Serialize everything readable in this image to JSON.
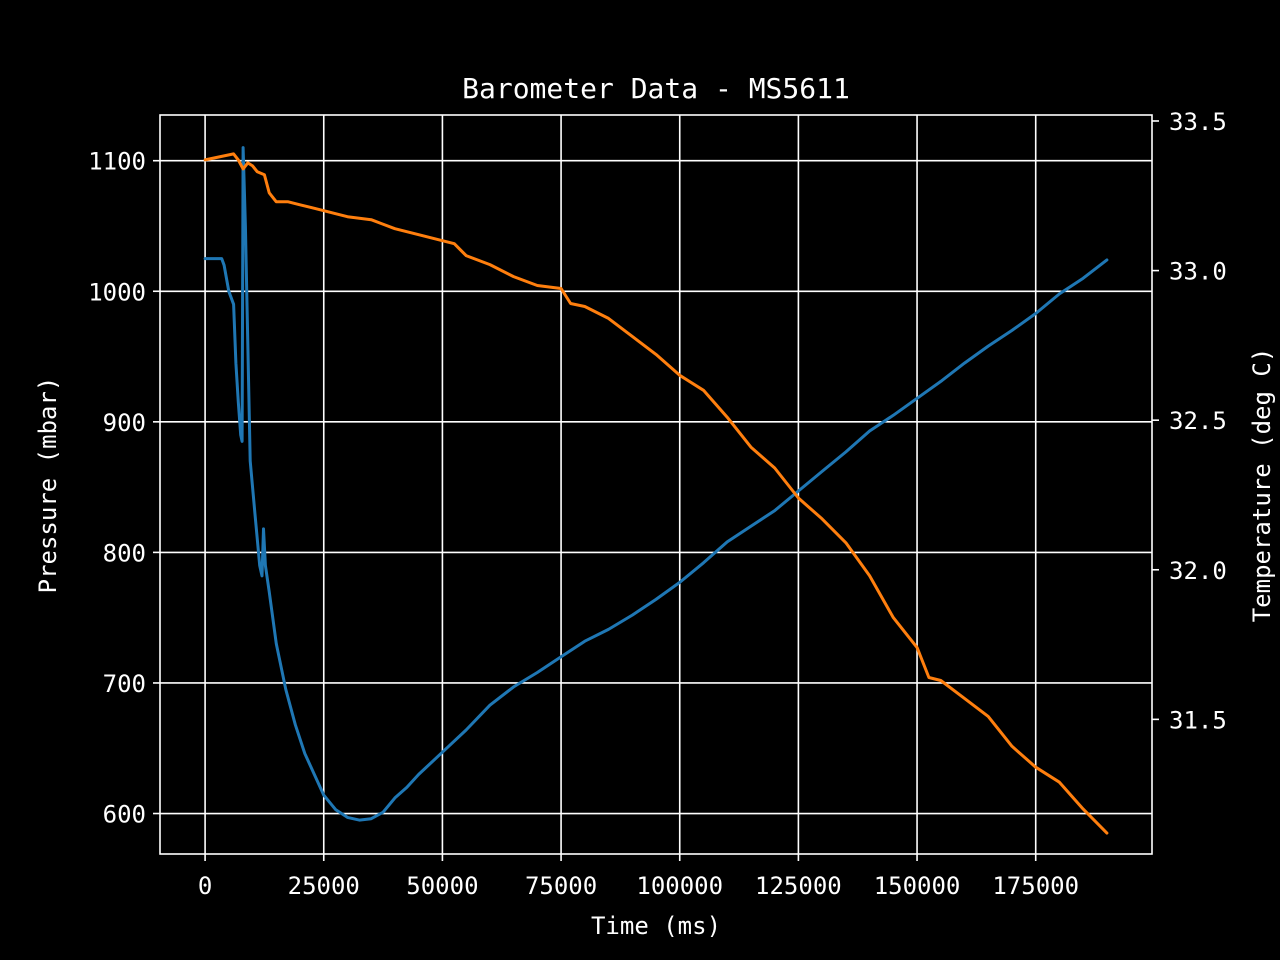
{
  "chart_data": {
    "type": "line",
    "title": "Barometer Data - MS5611",
    "xlabel": "Time (ms)",
    "ylabel": "Pressure (mbar)",
    "y2label": "Temperature (deg C)",
    "xlim": [
      -9500,
      199500
    ],
    "ylim": [
      569,
      1135
    ],
    "y2lim": [
      31.05,
      33.52
    ],
    "xticks": [
      0,
      25000,
      50000,
      75000,
      100000,
      125000,
      150000,
      175000
    ],
    "xtick_labels": [
      "0",
      "25000",
      "50000",
      "75000",
      "100000",
      "125000",
      "150000",
      "175000"
    ],
    "yticks": [
      600,
      700,
      800,
      900,
      1000,
      1100
    ],
    "ytick_labels": [
      "600",
      "700",
      "800",
      "900",
      "1000",
      "1100"
    ],
    "y2ticks": [
      31.5,
      32.0,
      32.5,
      33.0,
      33.5
    ],
    "y2tick_labels": [
      "31.5",
      "32.0",
      "32.5",
      "33.0",
      "33.5"
    ],
    "grid": true,
    "background": "#000000",
    "foreground": "#ffffff",
    "series": [
      {
        "axis": "left",
        "color": "#1f77b4",
        "points": [
          [
            0,
            1025
          ],
          [
            3500,
            1025
          ],
          [
            4000,
            1020
          ],
          [
            5000,
            1000
          ],
          [
            6000,
            990
          ],
          [
            6500,
            945
          ],
          [
            7000,
            915
          ],
          [
            7500,
            890
          ],
          [
            7800,
            885
          ],
          [
            8000,
            1110
          ],
          [
            8500,
            1050
          ],
          [
            9000,
            960
          ],
          [
            9500,
            870
          ],
          [
            10500,
            830
          ],
          [
            11500,
            790
          ],
          [
            12000,
            782
          ],
          [
            12300,
            818
          ],
          [
            12700,
            790
          ],
          [
            13500,
            770
          ],
          [
            15000,
            730
          ],
          [
            17000,
            695
          ],
          [
            19000,
            668
          ],
          [
            21000,
            646
          ],
          [
            23000,
            630
          ],
          [
            25000,
            614
          ],
          [
            27500,
            603
          ],
          [
            30000,
            597
          ],
          [
            32500,
            595
          ],
          [
            35000,
            596
          ],
          [
            37500,
            601
          ],
          [
            40000,
            612
          ],
          [
            42500,
            620
          ],
          [
            45000,
            630
          ],
          [
            50000,
            647
          ],
          [
            55000,
            664
          ],
          [
            60000,
            683
          ],
          [
            65000,
            697
          ],
          [
            70000,
            708
          ],
          [
            75000,
            720
          ],
          [
            80000,
            732
          ],
          [
            85000,
            741
          ],
          [
            90000,
            752
          ],
          [
            95000,
            764
          ],
          [
            100000,
            777
          ],
          [
            105000,
            792
          ],
          [
            110000,
            808
          ],
          [
            115000,
            820
          ],
          [
            120000,
            832
          ],
          [
            125000,
            847
          ],
          [
            130000,
            862
          ],
          [
            135000,
            877
          ],
          [
            140000,
            893
          ],
          [
            145000,
            905
          ],
          [
            150000,
            918
          ],
          [
            155000,
            931
          ],
          [
            160000,
            945
          ],
          [
            165000,
            958
          ],
          [
            170000,
            970
          ],
          [
            175000,
            983
          ],
          [
            180000,
            998
          ],
          [
            185000,
            1010
          ],
          [
            190000,
            1024
          ]
        ]
      },
      {
        "axis": "right",
        "color": "#ff7f0e",
        "points": [
          [
            0,
            33.37
          ],
          [
            3000,
            33.38
          ],
          [
            6000,
            33.39
          ],
          [
            7000,
            33.37
          ],
          [
            8000,
            33.34
          ],
          [
            9000,
            33.36
          ],
          [
            10000,
            33.35
          ],
          [
            11000,
            33.33
          ],
          [
            12500,
            33.32
          ],
          [
            13500,
            33.26
          ],
          [
            15000,
            33.23
          ],
          [
            17500,
            33.23
          ],
          [
            20000,
            33.22
          ],
          [
            22500,
            33.21
          ],
          [
            25000,
            33.2
          ],
          [
            27500,
            33.19
          ],
          [
            30000,
            33.18
          ],
          [
            35000,
            33.17
          ],
          [
            40000,
            33.14
          ],
          [
            45000,
            33.12
          ],
          [
            50000,
            33.1
          ],
          [
            52500,
            33.09
          ],
          [
            55000,
            33.05
          ],
          [
            60000,
            33.02
          ],
          [
            65000,
            32.98
          ],
          [
            70000,
            32.95
          ],
          [
            75000,
            32.94
          ],
          [
            77000,
            32.89
          ],
          [
            80000,
            32.88
          ],
          [
            85000,
            32.84
          ],
          [
            90000,
            32.78
          ],
          [
            95000,
            32.72
          ],
          [
            100000,
            32.65
          ],
          [
            105000,
            32.6
          ],
          [
            110000,
            32.51
          ],
          [
            115000,
            32.41
          ],
          [
            120000,
            32.34
          ],
          [
            125000,
            32.24
          ],
          [
            130000,
            32.17
          ],
          [
            135000,
            32.09
          ],
          [
            140000,
            31.98
          ],
          [
            145000,
            31.84
          ],
          [
            150000,
            31.74
          ],
          [
            152500,
            31.64
          ],
          [
            155000,
            31.63
          ],
          [
            160000,
            31.57
          ],
          [
            165000,
            31.51
          ],
          [
            170000,
            31.41
          ],
          [
            175000,
            31.34
          ],
          [
            180000,
            31.29
          ],
          [
            185000,
            31.2
          ],
          [
            190000,
            31.12
          ]
        ]
      }
    ]
  }
}
